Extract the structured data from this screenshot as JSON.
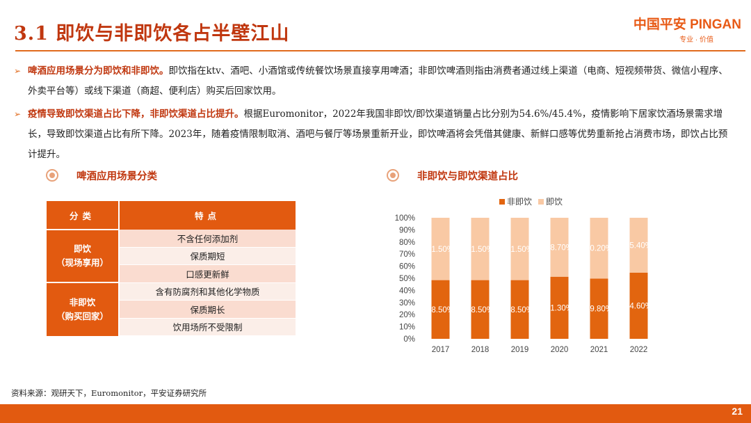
{
  "header": {
    "title": "3.1 即饮与非即饮各占半壁江山",
    "logo_text": "中国平安 PINGAN",
    "logo_sub": "专业 · 价值"
  },
  "bullets": [
    {
      "highlight": "啤酒应用场景分为即饮和非即饮。",
      "text": "即饮指在ktv、酒吧、小酒馆或传统餐饮场景直接享用啤酒；非即饮啤酒则指由消费者通过线上渠道（电商、短视频带货、微信小程序、外卖平台等）或线下渠道（商超、便利店）购买后回家饮用。"
    },
    {
      "highlight": "疫情导致即饮渠道占比下降，非即饮渠道占比提升。",
      "text": "根据Euromonitor，2022年我国非即饮/即饮渠道销量占比分别为54.6%/45.4%，疫情影响下居家饮酒场景需求增长，导致即饮渠道占比有所下降。2023年，随着疫情限制取消、酒吧与餐厅等场景重新开业，即饮啤酒将会凭借其健康、新鲜口感等优势重新抢占消费市场，即饮占比预计提升。"
    }
  ],
  "table_section": {
    "title": "啤酒应用场景分类",
    "headers": [
      "分类",
      "特点"
    ],
    "groups": [
      {
        "name": "即饮",
        "sub": "（现场享用）",
        "items": [
          "不含任何添加剂",
          "保质期短",
          "口感更新鲜"
        ]
      },
      {
        "name": "非即饮",
        "sub": "（购买回家）",
        "items": [
          "含有防腐剂和其他化学物质",
          "保质期长",
          "饮用场所不受限制"
        ]
      }
    ]
  },
  "chart_section": {
    "title": "非即饮与即饮渠道占比"
  },
  "chart_data": {
    "type": "bar",
    "stacked": true,
    "categories": [
      "2017",
      "2018",
      "2019",
      "2020",
      "2021",
      "2022"
    ],
    "series": [
      {
        "name": "非即饮",
        "color": "#e2650f",
        "values": [
          48.5,
          48.5,
          48.5,
          51.3,
          49.8,
          54.6
        ],
        "labels": [
          "48.50%",
          "48.50%",
          "48.50%",
          "51.30%",
          "49.80%",
          "54.60%"
        ]
      },
      {
        "name": "即饮",
        "color": "#f9c9a4",
        "values": [
          51.5,
          51.5,
          51.5,
          48.7,
          50.2,
          45.4
        ],
        "labels": [
          "51.50%",
          "51.50%",
          "51.50%",
          "48.70%",
          "50.20%",
          "45.40%"
        ]
      }
    ],
    "yticks": [
      "0%",
      "10%",
      "20%",
      "30%",
      "40%",
      "50%",
      "60%",
      "70%",
      "80%",
      "90%",
      "100%"
    ],
    "ylim": [
      0,
      100
    ],
    "legend_position": "top"
  },
  "footer": {
    "source": "资料来源：观研天下，Euromonitor，平安证券研究所",
    "page": "21"
  }
}
